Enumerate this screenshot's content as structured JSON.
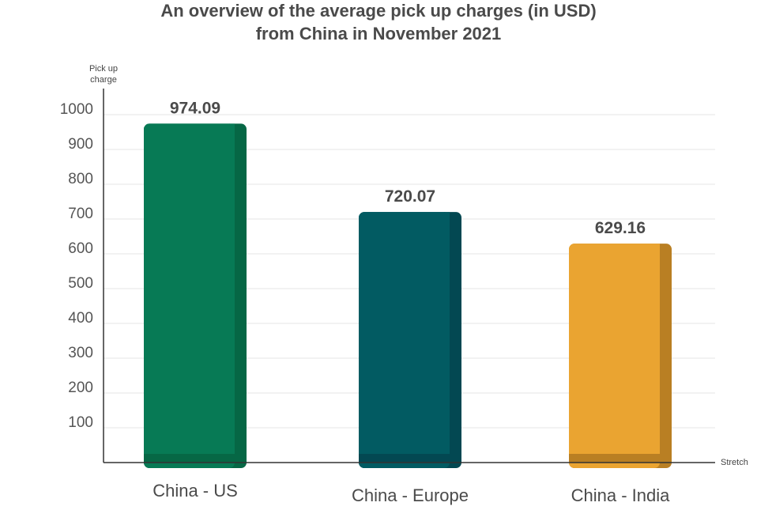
{
  "chart_data": {
    "type": "bar",
    "title_lines": [
      "An overview of the average pick up charges (in USD)",
      "from China in November 2021"
    ],
    "ylabel_lines": [
      "Pick up",
      "charge"
    ],
    "xlabel": "Stretch",
    "categories": [
      "China - US",
      "China - Europe",
      "China - India"
    ],
    "values": [
      974.09,
      720.07,
      629.16
    ],
    "value_labels": [
      "974.09",
      "720.07",
      "629.16"
    ],
    "yticks": [
      "100",
      "200",
      "300",
      "400",
      "500",
      "600",
      "700",
      "800",
      "900",
      "1000"
    ],
    "ylim": [
      0,
      1000
    ],
    "grid": true,
    "colors": {
      "China - US": {
        "main": "#077a55",
        "shade": "#066745"
      },
      "China - Europe": {
        "main": "#025b62",
        "shade": "#034852"
      },
      "China - India": {
        "main": "#eaa431",
        "shade": "#b97f23"
      }
    }
  }
}
